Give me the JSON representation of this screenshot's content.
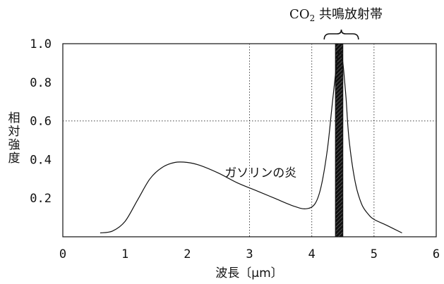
{
  "chart_data": {
    "type": "line",
    "xlabel": "波長〔μm〕",
    "ylabel": "相対強度",
    "ylabel_chars": [
      "相",
      "対",
      "強",
      "度"
    ],
    "xlim": [
      0,
      6
    ],
    "ylim": [
      0,
      1.0
    ],
    "x_ticks": [
      0,
      1,
      2,
      3,
      4,
      5,
      6
    ],
    "x_tick_labels": [
      "0",
      "1",
      "2",
      "3",
      "4",
      "5",
      "6"
    ],
    "y_ticks": [
      0.2,
      0.4,
      0.6,
      0.8,
      1.0
    ],
    "y_tick_labels": [
      "0.2",
      "0.4",
      "0.6",
      "0.8",
      "1.0"
    ],
    "grid": {
      "vertical_dotted_at": [
        3,
        4,
        5
      ],
      "horizontal_dotted_at": [
        0.6
      ]
    },
    "series": [
      {
        "name": "ガソリンの炎",
        "color": "#111111",
        "x": [
          0.6,
          0.8,
          1.0,
          1.2,
          1.4,
          1.6,
          1.8,
          2.0,
          2.2,
          2.5,
          2.8,
          3.1,
          3.4,
          3.7,
          3.9,
          4.05,
          4.15,
          4.25,
          4.32,
          4.38,
          4.42,
          4.46,
          4.5,
          4.55,
          4.6,
          4.7,
          4.8,
          4.9,
          5.0,
          5.2,
          5.45
        ],
        "y": [
          0.02,
          0.03,
          0.08,
          0.19,
          0.3,
          0.36,
          0.385,
          0.385,
          0.37,
          0.33,
          0.28,
          0.24,
          0.2,
          0.16,
          0.145,
          0.17,
          0.26,
          0.45,
          0.66,
          0.84,
          0.94,
          0.96,
          0.9,
          0.72,
          0.5,
          0.28,
          0.17,
          0.12,
          0.09,
          0.06,
          0.02
        ]
      }
    ],
    "band": {
      "label_main": "CO",
      "label_sub": "2",
      "label_rest": " 共鳴放射帯",
      "x_start": 4.38,
      "x_end": 4.5,
      "brace_x": [
        4.2,
        4.75
      ],
      "fill_color": "#111111"
    },
    "annotations": [
      {
        "text": "ガソリンの炎",
        "x": 2.6,
        "y": 0.31
      }
    ]
  }
}
